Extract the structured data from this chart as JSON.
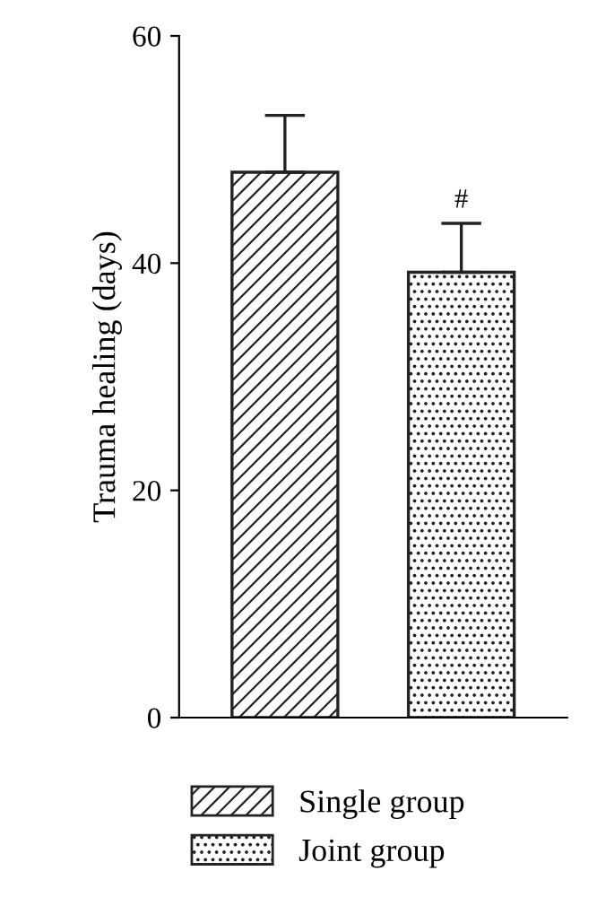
{
  "chart_data": {
    "type": "bar",
    "ylabel": "Trauma healing (days)",
    "categories": [
      null,
      null
    ],
    "series": [
      {
        "name": "Single group",
        "color": "#222222",
        "values": [
          48,
          null
        ],
        "errors": [
          5,
          null
        ]
      },
      {
        "name": "Joint group",
        "color": "#222222",
        "values": [
          null,
          39.2
        ],
        "errors": [
          null,
          4.3
        ]
      }
    ],
    "annotations": [
      "#"
    ],
    "ylim": [
      0,
      60
    ],
    "yticks": [
      0,
      20,
      40,
      60
    ],
    "grid": false,
    "legend": "bottom"
  }
}
